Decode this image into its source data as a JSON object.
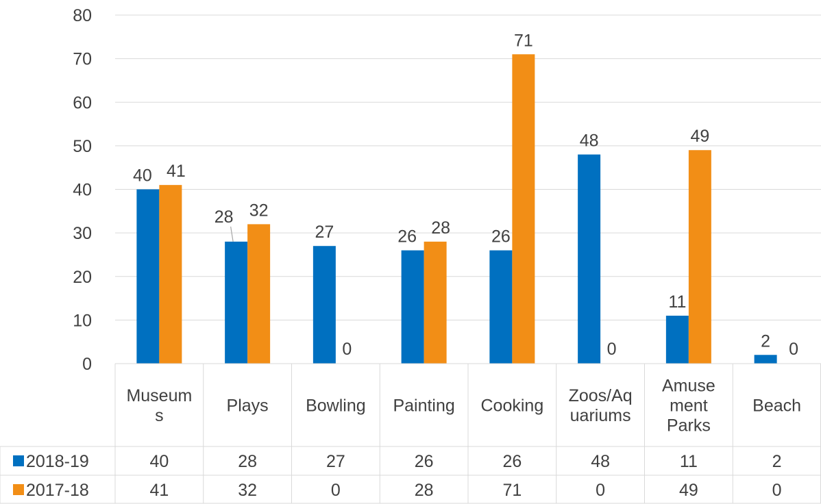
{
  "chart_data": {
    "type": "bar",
    "categories": [
      [
        "Museum",
        "s"
      ],
      [
        "Plays"
      ],
      [
        "Bowling"
      ],
      [
        "Painting"
      ],
      [
        "Cooking"
      ],
      [
        "Zoos/Aq",
        "uariums"
      ],
      [
        "Amuse",
        "ment",
        "Parks"
      ],
      [
        "Beach"
      ]
    ],
    "series": [
      {
        "name": "2018-19",
        "color": "#0070C0",
        "values": [
          40,
          28,
          27,
          26,
          26,
          48,
          11,
          2
        ]
      },
      {
        "name": "2017-18",
        "color": "#F28E16",
        "values": [
          41,
          32,
          0,
          28,
          71,
          0,
          49,
          0
        ]
      }
    ],
    "ylim": [
      0,
      80
    ],
    "yticks": [
      0,
      10,
      20,
      30,
      40,
      50,
      60,
      70,
      80
    ],
    "grid": true,
    "legend": "data-table",
    "data_table": true
  }
}
